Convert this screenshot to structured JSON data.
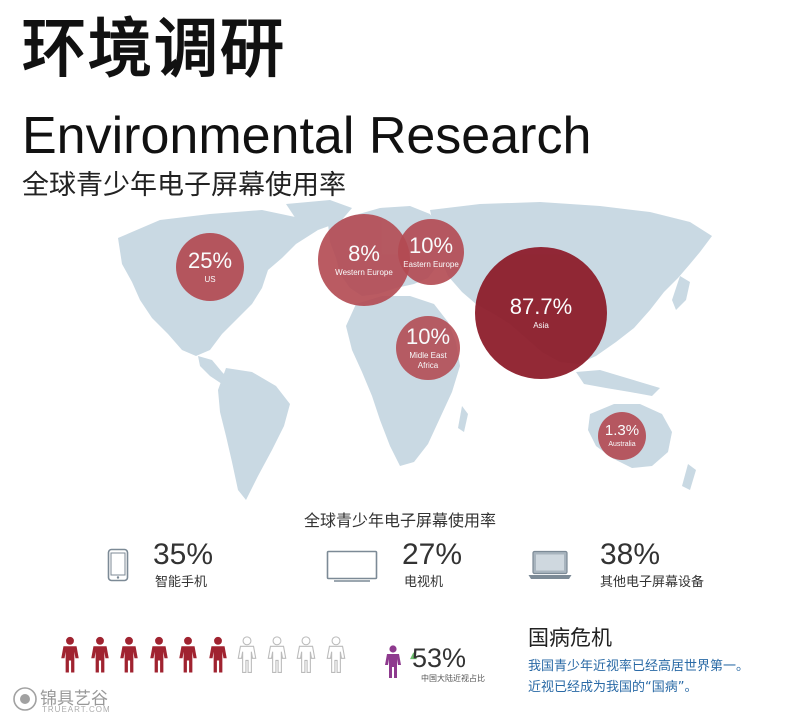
{
  "header": {
    "title_cn": "环境调研",
    "title_en": "Environmental Research",
    "subtitle_cn": "全球青少年电子屏幕使用率"
  },
  "colors": {
    "map": "#c9d9e3",
    "bubble_light": "#b34a52",
    "bubble_dark": "#8d1c2a",
    "figure_red": "#a02330",
    "figure_outline": "#bbbbbb",
    "figure_purple": "#8e3a8e",
    "accent_blue": "#2a6aa6"
  },
  "map_bubbles": [
    {
      "region": "US",
      "pct": "25%"
    },
    {
      "region": "Western Europe",
      "pct": "8%"
    },
    {
      "region": "Eastern Europe",
      "pct": "10%"
    },
    {
      "region": "Asia",
      "pct": "87.7%"
    },
    {
      "region": "Midle East\nAfrica",
      "pct": "10%"
    },
    {
      "region": "Australia",
      "pct": "1.3%"
    }
  ],
  "stats": {
    "heading": "全球青少年电子屏幕使用率",
    "devices": [
      {
        "icon": "smartphone-icon",
        "pct": "35%",
        "name": "智能手机"
      },
      {
        "icon": "tv-icon",
        "pct": "27%",
        "name": "电视机"
      },
      {
        "icon": "laptop-icon",
        "pct": "38%",
        "name": "其他电子屏幕设备"
      }
    ]
  },
  "people": {
    "filled": 6,
    "outline": 4
  },
  "myopia": {
    "pct": "53%",
    "label": "中国大陆近视占比",
    "crisis_title": "国病危机",
    "crisis_line1": "我国青少年近视率已经高居世界第一。",
    "crisis_line2": "近视已经成为我国的“国病”。"
  },
  "watermark": {
    "text": "锦具艺谷",
    "sub": "TRUEART.COM"
  }
}
